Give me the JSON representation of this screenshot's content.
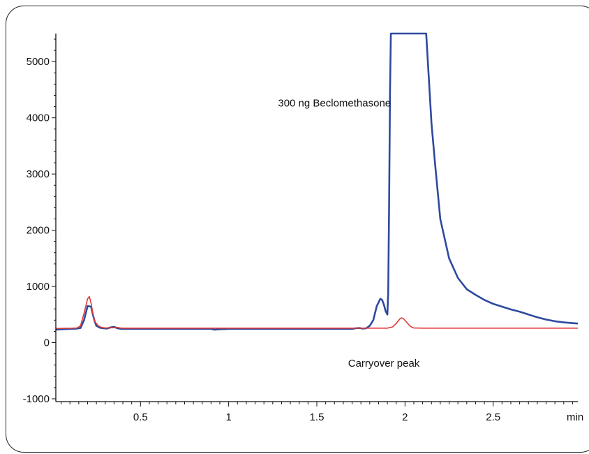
{
  "chart_data": {
    "type": "line",
    "title": "",
    "xlabel": "min",
    "ylabel": "",
    "xlim": [
      0.02,
      2.98
    ],
    "ylim": [
      -1050,
      5500
    ],
    "x_ticks": [
      {
        "value": 0.5,
        "label": "0.5"
      },
      {
        "value": 1,
        "label": "1"
      },
      {
        "value": 1.5,
        "label": "1.5"
      },
      {
        "value": 2,
        "label": "2"
      },
      {
        "value": 2.5,
        "label": "2.5"
      }
    ],
    "y_ticks": [
      {
        "value": -1000,
        "label": "-1000"
      },
      {
        "value": 0,
        "label": "0"
      },
      {
        "value": 1000,
        "label": "1000"
      },
      {
        "value": 2000,
        "label": "2000"
      },
      {
        "value": 3000,
        "label": "3000"
      },
      {
        "value": 4000,
        "label": "4000"
      },
      {
        "value": 5000,
        "label": "5000"
      }
    ],
    "grid": false,
    "annotations": [
      {
        "text": "300 ng Beclomethasone",
        "x": 1.6,
        "y": 4200
      },
      {
        "text": "Carryover peak",
        "x": 1.88,
        "y": -430
      }
    ],
    "series": [
      {
        "color": "#2e4a9e",
        "x": [
          0.02,
          0.07,
          0.1,
          0.14,
          0.16,
          0.18,
          0.2,
          0.22,
          0.23,
          0.24,
          0.25,
          0.27,
          0.29,
          0.31,
          0.33,
          0.35,
          0.37,
          0.39,
          0.45,
          0.6,
          0.8,
          0.9,
          0.92,
          0.94,
          0.96,
          0.98,
          1.0,
          1.2,
          1.4,
          1.6,
          1.7,
          1.72,
          1.74,
          1.76,
          1.78,
          1.8,
          1.82,
          1.84,
          1.86,
          1.87,
          1.88,
          1.89,
          1.9,
          1.905,
          1.91,
          1.915,
          1.92,
          1.925,
          1.93,
          2.12,
          2.15,
          2.17,
          2.2,
          2.25,
          2.3,
          2.35,
          2.4,
          2.45,
          2.5,
          2.55,
          2.6,
          2.65,
          2.7,
          2.75,
          2.8,
          2.85,
          2.9,
          2.98
        ],
        "y": [
          230,
          240,
          245,
          250,
          260,
          400,
          650,
          640,
          500,
          380,
          300,
          265,
          255,
          250,
          270,
          280,
          255,
          245,
          245,
          245,
          245,
          245,
          230,
          235,
          240,
          240,
          245,
          245,
          245,
          245,
          245,
          255,
          260,
          250,
          255,
          300,
          400,
          650,
          780,
          760,
          680,
          560,
          500,
          900,
          2500,
          4500,
          5500,
          5500,
          5500,
          5500,
          3900,
          3200,
          2200,
          1500,
          1150,
          950,
          850,
          760,
          690,
          640,
          590,
          550,
          500,
          450,
          410,
          380,
          360,
          340
        ]
      },
      {
        "color": "#e03b3b",
        "x": [
          0.02,
          0.07,
          0.1,
          0.14,
          0.16,
          0.18,
          0.2,
          0.21,
          0.22,
          0.23,
          0.24,
          0.26,
          0.28,
          0.3,
          0.32,
          0.35,
          0.37,
          0.39,
          0.45,
          0.8,
          1.0,
          1.5,
          1.8,
          1.9,
          1.93,
          1.95,
          1.97,
          1.98,
          1.99,
          2.01,
          2.03,
          2.05,
          2.1,
          2.5,
          2.98
        ],
        "y": [
          250,
          255,
          255,
          260,
          300,
          520,
          780,
          820,
          700,
          520,
          380,
          300,
          270,
          260,
          262,
          265,
          270,
          258,
          258,
          258,
          258,
          258,
          258,
          258,
          280,
          340,
          420,
          440,
          430,
          360,
          290,
          260,
          258,
          258,
          258
        ]
      }
    ]
  }
}
